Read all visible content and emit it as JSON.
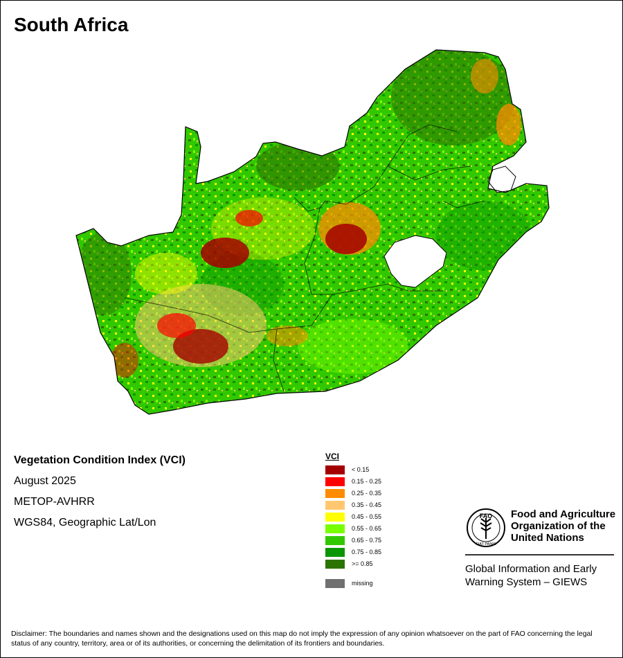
{
  "map": {
    "title": "South Africa",
    "country_name": "South Africa",
    "colors": {
      "ocean": "#ffffff",
      "border": "#000000",
      "lesotho": "#ffffff"
    }
  },
  "info": {
    "index_name": "Vegetation Condition Index (VCI)",
    "date": "August 2025",
    "sensor": "METOP-AVHRR",
    "projection": "WGS84, Geographic Lat/Lon"
  },
  "legend": {
    "title": "VCI",
    "classes": [
      {
        "label": "< 0.15",
        "color": "#a50000"
      },
      {
        "label": "0.15 - 0.25",
        "color": "#ff0000"
      },
      {
        "label": "0.25 - 0.35",
        "color": "#ff8c00"
      },
      {
        "label": "0.35 - 0.45",
        "color": "#ffc870"
      },
      {
        "label": "0.45 - 0.55",
        "color": "#ffff00"
      },
      {
        "label": "0.55 - 0.65",
        "color": "#78ff00"
      },
      {
        "label": "0.65 - 0.75",
        "color": "#32c800"
      },
      {
        "label": "0.75 - 0.85",
        "color": "#0a9600"
      },
      {
        "label": ">= 0.85",
        "color": "#2d7300"
      }
    ],
    "missing": {
      "label": "missing",
      "color": "#707070"
    }
  },
  "branding": {
    "org_line1": "Food and Agriculture",
    "org_line2": "Organization of the",
    "org_line3": "United Nations",
    "system_line1": "Global Information and Early",
    "system_line2": "Warning System – GIEWS",
    "logo_text": "FAO",
    "logo_motto": "FIAT PANIS",
    "logo_icon": "fao-wheat-logo"
  },
  "disclaimer": "Disclaimer: The boundaries and names shown and the designations used on this map do not imply the expression of any opinion whatsoever on the part of FAO concerning the legal status of any country, territory, area or of its authorities, or concerning the delimitation of its frontiers and boundaries."
}
